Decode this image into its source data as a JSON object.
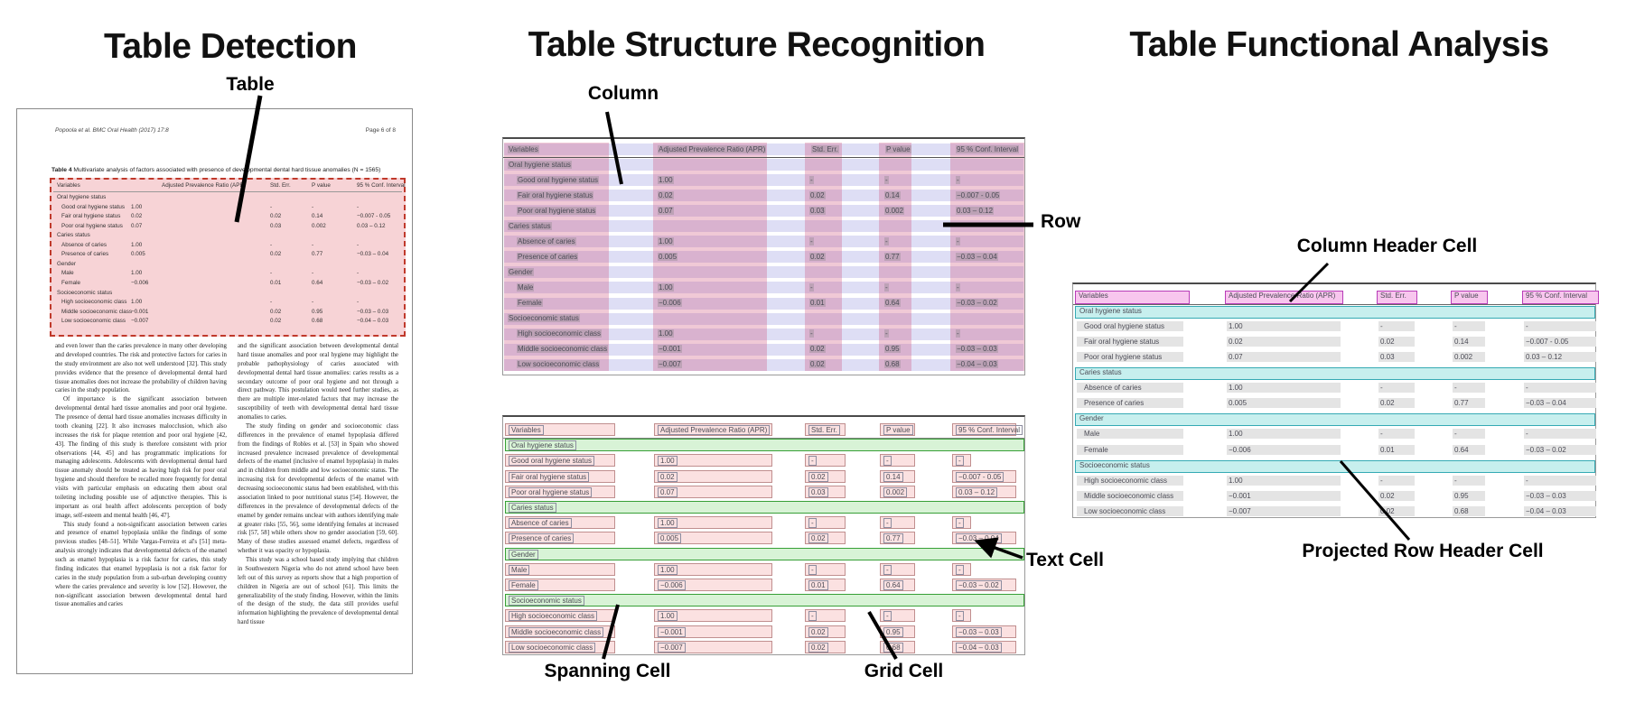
{
  "colors": {
    "detection_fill": "#f7d3d6",
    "detection_border": "#c0392b",
    "column_band": "#ce4c78",
    "row_band": "#6868d0",
    "cell_fill": "#fbe1e1",
    "cell_border": "#c08f8f",
    "spanning_fill": "#d8f3d6",
    "spanning_border": "#37a037",
    "header_cell_fill": "#f8c6ee",
    "header_cell_border": "#b83cb8",
    "projected_fill": "#c7efee",
    "projected_border": "#35aab4",
    "grid_cell_gray": "#e4e4e4"
  },
  "panels": {
    "detection": {
      "title": "Table Detection",
      "callout": "Table"
    },
    "structure": {
      "title": "Table Structure Recognition",
      "callouts": {
        "column": "Column",
        "row": "Row",
        "spanning": "Spanning Cell",
        "grid": "Grid Cell",
        "text": "Text Cell"
      }
    },
    "functional": {
      "title": "Table Functional Analysis",
      "callouts": {
        "column_header": "Column Header Cell",
        "projected_row_header": "Projected Row Header Cell"
      }
    }
  },
  "document": {
    "header_left": "Popoola et al. BMC Oral Health  (2017) 17:8",
    "header_right": "Page 6 of 8",
    "table_caption_label": "Table 4",
    "table_caption_text": " Multivariate analysis of factors associated with presence of developmental dental hard tissue anomalies (N = 1565)",
    "body_left": [
      "and even lower than the caries prevalence in many other developing and developed countries. The risk and protective factors for caries in the study environment are also not well understood [32]. This study provides evidence that the presence of developmental dental hard tissue anomalies does not increase the probability of children having caries in the study population.",
      "Of importance is the significant association between developmental dental hard tissue anomalies and poor oral hygiene. The presence of dental hard tissue anomalies increases difficulty in tooth cleaning [22]. It also increases malocclusion, which also increases the risk for plaque retention and poor oral hygiene [42, 43]. The finding of this study is therefore consistent with prior observations [44, 45] and has programmatic implications for managing adolescents. Adolescents with developmental dental hard tissue anomaly should be treated as having high risk for poor oral hygiene and should therefore be recalled more frequently for dental visits with particular emphasis on educating them about oral toileting including possible use of adjunctive therapies. This is important as oral health affect adolescents perception of body image, self-esteem and mental health [46, 47].",
      "This study found a non-significant association between caries and presence of enamel hypoplasia unlike the findings of some previous studies [48–51]. While Vargas-Ferreira et al's [51] meta-analysis strongly indicates that developmental defects of the enamel such as enamel hypoplasia is a risk factor for caries, this study finding indicates that enamel hypoplasia is not a risk factor for caries in the study population from a sub-urban developing country where the caries prevalence and severity is low [52]. However, the non-significant association between developmental dental hard tissue anomalies and caries"
    ],
    "body_right": [
      "and the significant association between developmental dental hard tissue anomalies and poor oral hygiene may highlight the probable pathophysiology of caries associated with developmental dental hard tissue anomalies: caries results as a secondary outcome of poor oral hygiene and not through a direct pathway. This postulation would need further studies, as there are multiple inter-related factors that may increase the susceptibility of teeth with developmental dental hard tissue anomalies to caries.",
      "The study finding on gender and socioeconomic class differences in the prevalence of enamel hypoplasia differed from the findings of Robles et al. [53] in Spain who showed increased prevalence increased prevalence of developmental defects of the enamel (inclusive of enamel hypoplasia) in males and in children from middle and low socioeconomic status. The increasing risk for developmental defects of the enamel with decreasing socioeconomic status had been established, with this association linked to poor nutritional status [54]. However, the differences in the prevalence of developmental defects of the enamel by gender remains unclear with authors identifying male at greater risks [55, 56], some identifying females at increased risk [57, 58] while others show no gender association [59, 60]. Many of these studies assessed enamel defects, regardless of whether it was opacity or hypoplasia.",
      "This study was a school based study implying that children in Southwestern Nigeria who do not attend school have been left out of this survey as reports show that a high proportion of children in Nigeria are out of school [61]. This limits the generalizability of the study finding. However, within the limits of the design of the study, the data still provides useful information highlighting the prevalence of developmental dental hard tissue"
    ]
  },
  "table": {
    "columns": [
      "Variables",
      "Adjusted Prevalence Ratio (APR)",
      "Std. Err.",
      "P value",
      "95 % Conf. Interval"
    ],
    "rows": [
      {
        "label": "Oral hygiene status",
        "section": true
      },
      {
        "label": "Good oral hygiene status",
        "indent": true,
        "values": [
          "1.00",
          "-",
          "-",
          "-"
        ]
      },
      {
        "label": "Fair oral hygiene status",
        "indent": true,
        "values": [
          "0.02",
          "0.02",
          "0.14",
          "−0.007 - 0.05"
        ]
      },
      {
        "label": "Poor oral hygiene status",
        "indent": true,
        "values": [
          "0.07",
          "0.03",
          "0.002",
          "0.03 – 0.12"
        ]
      },
      {
        "label": "Caries status",
        "section": true
      },
      {
        "label": "Absence of caries",
        "indent": true,
        "values": [
          "1.00",
          "-",
          "-",
          "-"
        ]
      },
      {
        "label": "Presence of caries",
        "indent": true,
        "values": [
          "0.005",
          "0.02",
          "0.77",
          "−0.03 – 0.04"
        ]
      },
      {
        "label": "Gender",
        "section": true
      },
      {
        "label": "Male",
        "indent": true,
        "values": [
          "1.00",
          "-",
          "-",
          "-"
        ]
      },
      {
        "label": "Female",
        "indent": true,
        "values": [
          "−0.006",
          "0.01",
          "0.64",
          "−0.03 – 0.02"
        ]
      },
      {
        "label": "Socioeconomic status",
        "section": true
      },
      {
        "label": "High socioeconomic class",
        "indent": true,
        "values": [
          "1.00",
          "-",
          "-",
          "-"
        ]
      },
      {
        "label": "Middle socioeconomic class",
        "indent": true,
        "values": [
          "−0.001",
          "0.02",
          "0.95",
          "−0.03 – 0.03"
        ]
      },
      {
        "label": "Low socioeconomic class",
        "indent": true,
        "values": [
          "−0.007",
          "0.02",
          "0.68",
          "−0.04 – 0.03"
        ]
      }
    ]
  }
}
